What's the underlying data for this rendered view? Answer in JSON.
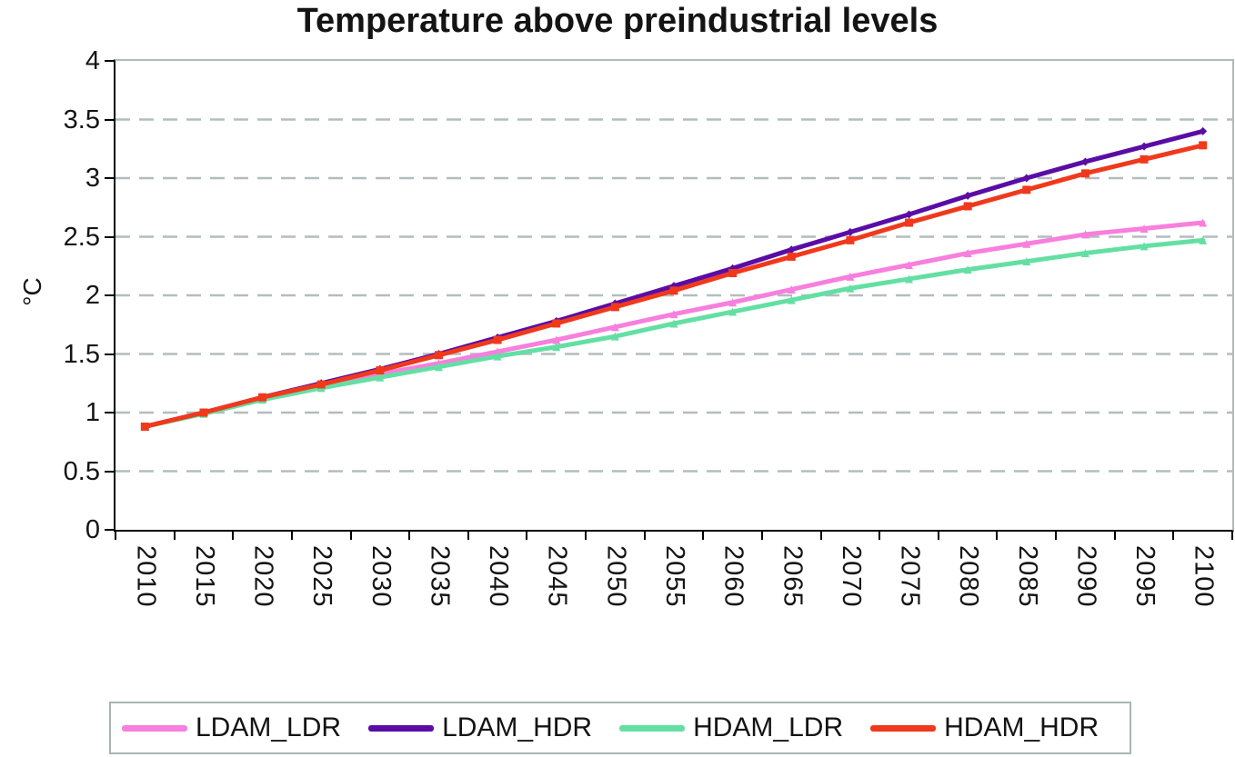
{
  "chart_data": {
    "type": "line",
    "title": "Temperature above preindustrial levels",
    "xlabel": "",
    "ylabel": "°C",
    "ylim": [
      0,
      4
    ],
    "y_tick_values": [
      4,
      3.5,
      3,
      2.5,
      2,
      1.5,
      1,
      0.5,
      0
    ],
    "y_tick_labels": [
      "4",
      "3.5",
      "3",
      "2.5",
      "2",
      "1.5",
      "1",
      "0.5",
      "0"
    ],
    "grid": "horizontal-dashed",
    "legend_position": "bottom",
    "categories": [
      "2010",
      "2015",
      "2020",
      "2025",
      "2030",
      "2035",
      "2040",
      "2045",
      "2050",
      "2055",
      "2060",
      "2065",
      "2070",
      "2075",
      "2080",
      "2085",
      "2090",
      "2095",
      "2100"
    ],
    "series": [
      {
        "name": "LDAM_LDR",
        "color": "#F77FDD",
        "marker": "triangle",
        "values": [
          0.88,
          1.0,
          1.12,
          1.23,
          1.33,
          1.42,
          1.52,
          1.62,
          1.73,
          1.84,
          1.94,
          2.05,
          2.16,
          2.26,
          2.36,
          2.44,
          2.52,
          2.57,
          2.62
        ]
      },
      {
        "name": "LDAM_HDR",
        "color": "#5A0DA5",
        "marker": "diamond",
        "values": [
          0.88,
          1.0,
          1.13,
          1.25,
          1.37,
          1.5,
          1.64,
          1.78,
          1.93,
          2.08,
          2.23,
          2.39,
          2.54,
          2.69,
          2.85,
          3.0,
          3.14,
          3.27,
          3.4
        ]
      },
      {
        "name": "HDAM_LDR",
        "color": "#64DFA4",
        "marker": "triangle",
        "values": [
          0.88,
          0.99,
          1.11,
          1.21,
          1.3,
          1.39,
          1.48,
          1.56,
          1.65,
          1.76,
          1.86,
          1.96,
          2.06,
          2.14,
          2.22,
          2.29,
          2.36,
          2.42,
          2.47
        ]
      },
      {
        "name": "HDAM_HDR",
        "color": "#F0391C",
        "marker": "square",
        "values": [
          0.88,
          1.0,
          1.13,
          1.24,
          1.36,
          1.49,
          1.62,
          1.76,
          1.9,
          2.04,
          2.19,
          2.33,
          2.47,
          2.62,
          2.76,
          2.9,
          3.04,
          3.16,
          3.28
        ]
      }
    ]
  },
  "colors": {
    "gridline": "#b2bdbd",
    "axis": "#000000",
    "plot_border": "#b0bbbb",
    "legend_border": "#a9b5b5",
    "title_text": "#141414"
  }
}
